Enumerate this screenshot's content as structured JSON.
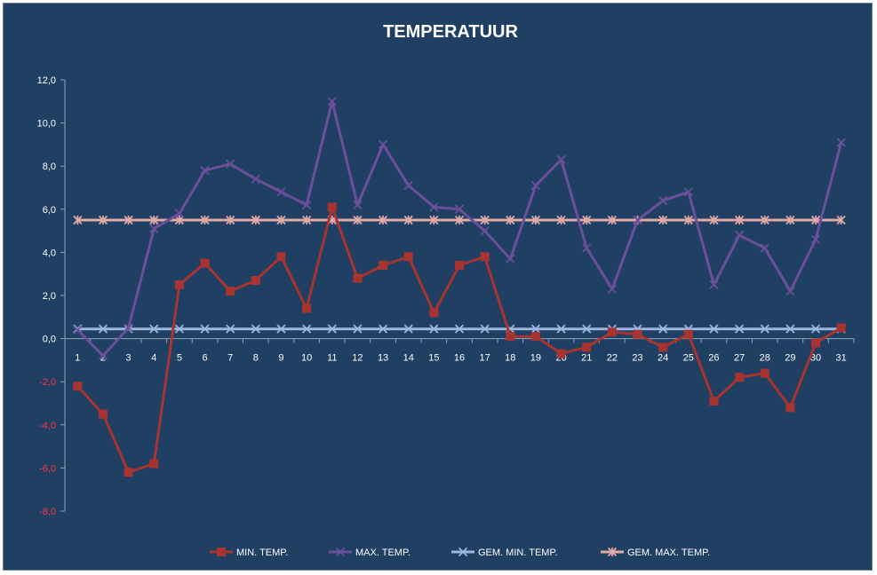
{
  "colors": {
    "background": "#1f3f63",
    "min": "#a83432",
    "max": "#6b4f9a",
    "gem_min": "#9db6dd",
    "gem_max": "#e0a9a7",
    "tick": "#ffffff",
    "negative_tick": "#ff3344"
  },
  "chart_data": {
    "type": "line",
    "title": "TEMPERATUUR",
    "x": [
      "1",
      "2",
      "3",
      "4",
      "5",
      "6",
      "7",
      "8",
      "9",
      "10",
      "11",
      "12",
      "13",
      "14",
      "15",
      "16",
      "17",
      "18",
      "19",
      "20",
      "21",
      "22",
      "23",
      "24",
      "25",
      "26",
      "27",
      "28",
      "29",
      "30",
      "31"
    ],
    "ylim": [
      -8,
      12
    ],
    "yticks": [
      "12,0",
      "10,0",
      "8,0",
      "6,0",
      "4,0",
      "2,0",
      "0,0",
      "-2,0",
      "-4,0",
      "-6,0",
      "-8,0"
    ],
    "ytick_values": [
      12,
      10,
      8,
      6,
      4,
      2,
      0,
      -2,
      -4,
      -6,
      -8
    ],
    "grid": false,
    "legend_position": "bottom",
    "series": [
      {
        "name": "MIN. TEMP.",
        "color": "#a83432",
        "marker": "square",
        "values": [
          -2.2,
          -3.5,
          -6.2,
          -5.8,
          2.5,
          3.5,
          2.2,
          2.7,
          3.8,
          1.4,
          6.1,
          2.8,
          3.4,
          3.8,
          1.2,
          3.4,
          3.8,
          0.1,
          0.1,
          -0.7,
          -0.4,
          0.3,
          0.2,
          -0.4,
          0.2,
          -2.9,
          -1.8,
          -1.6,
          -3.2,
          -0.2,
          0.5
        ]
      },
      {
        "name": "MAX. TEMP.",
        "color": "#6b4f9a",
        "marker": "x",
        "values": [
          0.4,
          -0.8,
          0.5,
          5.1,
          5.8,
          7.8,
          8.1,
          7.4,
          6.8,
          6.2,
          11.0,
          6.2,
          9.0,
          7.1,
          6.1,
          6.0,
          5.0,
          3.7,
          7.1,
          8.3,
          4.2,
          2.3,
          5.5,
          6.4,
          6.8,
          2.5,
          4.8,
          4.2,
          2.2,
          4.6,
          9.1
        ]
      },
      {
        "name": "GEM. MIN. TEMP.",
        "color": "#9db6dd",
        "marker": "x",
        "values": [
          0.45,
          0.45,
          0.45,
          0.45,
          0.45,
          0.45,
          0.45,
          0.45,
          0.45,
          0.45,
          0.45,
          0.45,
          0.45,
          0.45,
          0.45,
          0.45,
          0.45,
          0.45,
          0.45,
          0.45,
          0.45,
          0.45,
          0.45,
          0.45,
          0.45,
          0.45,
          0.45,
          0.45,
          0.45,
          0.45,
          0.45
        ]
      },
      {
        "name": "GEM. MAX. TEMP.",
        "color": "#e0a9a7",
        "marker": "asterisk",
        "values": [
          5.5,
          5.5,
          5.5,
          5.5,
          5.5,
          5.5,
          5.5,
          5.5,
          5.5,
          5.5,
          5.5,
          5.5,
          5.5,
          5.5,
          5.5,
          5.5,
          5.5,
          5.5,
          5.5,
          5.5,
          5.5,
          5.5,
          5.5,
          5.5,
          5.5,
          5.5,
          5.5,
          5.5,
          5.5,
          5.5,
          5.5
        ]
      }
    ]
  }
}
